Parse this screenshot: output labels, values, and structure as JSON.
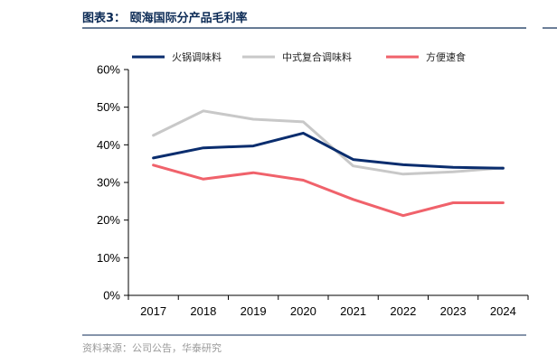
{
  "figure": {
    "title": "图表3：  颐海国际分产品毛利率",
    "source": "资料来源：公司公告，华泰研究"
  },
  "chart_data": {
    "type": "line",
    "categories": [
      "2017",
      "2018",
      "2019",
      "2020",
      "2021",
      "2022",
      "2023",
      "2024"
    ],
    "series": [
      {
        "name": "火锅调味料",
        "color": "#0a2d6e",
        "values": [
          36.5,
          39.2,
          39.7,
          43.1,
          36.1,
          34.7,
          34.0,
          33.8
        ]
      },
      {
        "name": "中式复合调味料",
        "color": "#c8c8c8",
        "values": [
          42.5,
          49.0,
          46.8,
          46.1,
          34.4,
          32.2,
          32.8,
          33.9
        ]
      },
      {
        "name": "方便速食",
        "color": "#f0626b",
        "values": [
          34.6,
          30.9,
          32.6,
          30.6,
          25.5,
          21.2,
          24.6,
          24.6
        ]
      }
    ],
    "ylim": [
      0,
      60
    ],
    "yticks": [
      "0%",
      "10%",
      "20%",
      "30%",
      "40%",
      "50%",
      "60%"
    ],
    "grid": false,
    "legend_position": "top"
  }
}
